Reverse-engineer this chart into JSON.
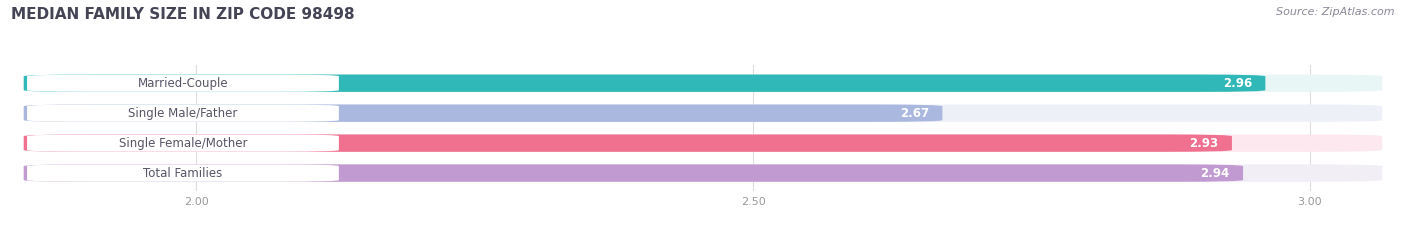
{
  "title": "MEDIAN FAMILY SIZE IN ZIP CODE 98498",
  "source": "Source: ZipAtlas.com",
  "categories": [
    "Married-Couple",
    "Single Male/Father",
    "Single Female/Mother",
    "Total Families"
  ],
  "values": [
    2.96,
    2.67,
    2.93,
    2.94
  ],
  "bar_colors": [
    "#30b8b8",
    "#aab8e0",
    "#f07090",
    "#c09ad0"
  ],
  "bar_bg_colors": [
    "#e8f6f6",
    "#eef0f8",
    "#fce8ee",
    "#f2eef6"
  ],
  "label_bg_color": "#ffffff",
  "label_text_color": "#555566",
  "value_text_color": "#ffffff",
  "xlim_min": 1.83,
  "xlim_max": 3.08,
  "xticks": [
    2.0,
    2.5,
    3.0
  ],
  "xtick_labels": [
    "2.00",
    "2.50",
    "3.00"
  ],
  "bar_height": 0.58,
  "label_fontsize": 8.5,
  "value_fontsize": 8.5,
  "title_fontsize": 11,
  "source_fontsize": 8,
  "title_color": "#444455",
  "source_color": "#888899",
  "background_color": "#ffffff",
  "grid_color": "#dddddd",
  "tick_color": "#999999"
}
